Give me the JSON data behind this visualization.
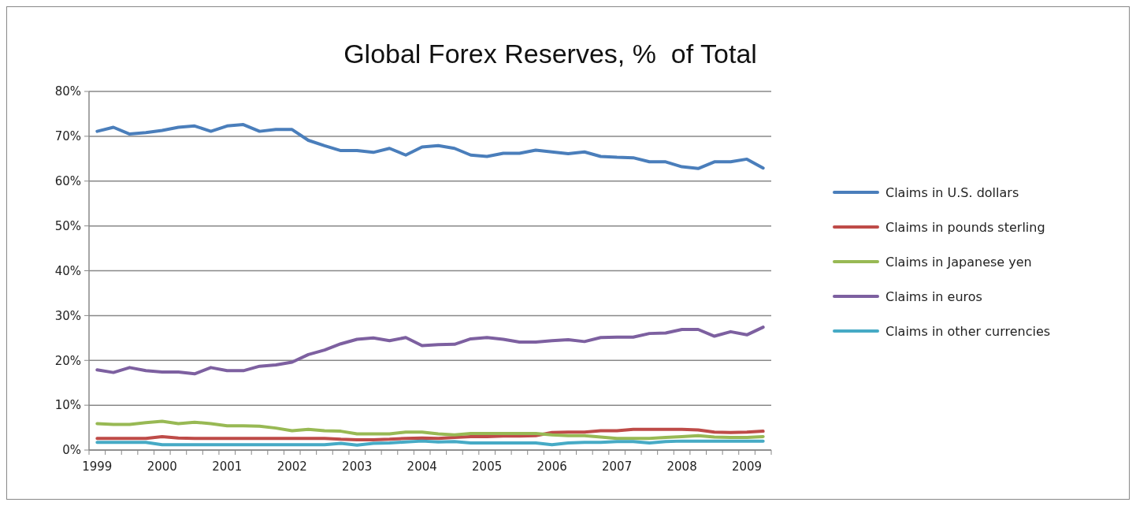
{
  "chart_data": {
    "type": "line",
    "title": "Global Forex Reserves, %  of Total",
    "categories": [
      "1999",
      null,
      null,
      null,
      "2000",
      null,
      null,
      null,
      "2001",
      null,
      null,
      null,
      "2002",
      null,
      null,
      null,
      "2003",
      null,
      null,
      null,
      "2004",
      null,
      null,
      null,
      "2005",
      null,
      null,
      null,
      "2006",
      null,
      null,
      null,
      "2007",
      null,
      null,
      null,
      "2008",
      null,
      null,
      null,
      "2009",
      null
    ],
    "ylim": [
      0,
      80
    ],
    "yticks": [
      {
        "value": 0,
        "label": "0%"
      },
      {
        "value": 10,
        "label": "10%"
      },
      {
        "value": 20,
        "label": "20%"
      },
      {
        "value": 30,
        "label": "30%"
      },
      {
        "value": 40,
        "label": "40%"
      },
      {
        "value": 50,
        "label": "50%"
      },
      {
        "value": 60,
        "label": "60%"
      },
      {
        "value": 70,
        "label": "70%"
      },
      {
        "value": 80,
        "label": "80%"
      }
    ],
    "grid": "y",
    "legend": "right",
    "marker": "none",
    "line_style": "solid",
    "series": [
      {
        "name": "Claims in U.S. dollars",
        "color": "#4a7ebb",
        "values": [
          71.1,
          72.0,
          70.5,
          70.8,
          71.3,
          72.0,
          72.3,
          71.1,
          72.3,
          72.6,
          71.1,
          71.5,
          71.5,
          69.1,
          67.9,
          66.8,
          66.8,
          66.4,
          67.3,
          65.8,
          67.6,
          67.9,
          67.3,
          65.8,
          65.5,
          66.2,
          66.2,
          66.9,
          66.5,
          66.1,
          66.5,
          65.5,
          65.3,
          65.2,
          64.3,
          64.3,
          63.2,
          62.8,
          64.3,
          64.3,
          64.9,
          62.9
        ]
      },
      {
        "name": "Claims in pounds sterling",
        "color": "#be4b48",
        "values": [
          2.6,
          2.6,
          2.6,
          2.6,
          3.0,
          2.7,
          2.6,
          2.6,
          2.6,
          2.6,
          2.6,
          2.6,
          2.6,
          2.6,
          2.6,
          2.4,
          2.3,
          2.3,
          2.4,
          2.6,
          2.7,
          2.6,
          2.8,
          3.0,
          3.0,
          3.1,
          3.1,
          3.2,
          3.9,
          4.0,
          4.0,
          4.3,
          4.3,
          4.6,
          4.6,
          4.6,
          4.6,
          4.5,
          4.0,
          3.9,
          4.0,
          4.2
        ]
      },
      {
        "name": "Claims in Japanese yen",
        "color": "#98b954",
        "values": [
          5.9,
          5.7,
          5.7,
          6.1,
          6.4,
          5.9,
          6.2,
          5.9,
          5.4,
          5.4,
          5.3,
          4.9,
          4.3,
          4.6,
          4.3,
          4.2,
          3.6,
          3.6,
          3.6,
          4.0,
          4.0,
          3.6,
          3.4,
          3.7,
          3.7,
          3.7,
          3.7,
          3.7,
          3.4,
          3.2,
          3.2,
          2.9,
          2.6,
          2.6,
          2.6,
          2.8,
          3.0,
          3.2,
          2.9,
          2.8,
          2.8,
          3.0
        ]
      },
      {
        "name": "Claims in euros",
        "color": "#7d60a0",
        "values": [
          17.9,
          17.3,
          18.4,
          17.7,
          17.4,
          17.4,
          17.0,
          18.4,
          17.7,
          17.7,
          18.7,
          19.0,
          19.6,
          21.3,
          22.3,
          23.7,
          24.7,
          25.0,
          24.4,
          25.1,
          23.3,
          23.5,
          23.6,
          24.8,
          25.1,
          24.7,
          24.1,
          24.1,
          24.4,
          24.6,
          24.2,
          25.1,
          25.2,
          25.2,
          26.0,
          26.1,
          26.9,
          26.9,
          25.4,
          26.4,
          25.7,
          27.4
        ]
      },
      {
        "name": "Claims in other currencies",
        "color": "#46aac5",
        "values": [
          1.7,
          1.7,
          1.7,
          1.7,
          1.2,
          1.2,
          1.2,
          1.2,
          1.2,
          1.2,
          1.2,
          1.2,
          1.2,
          1.2,
          1.2,
          1.5,
          1.1,
          1.5,
          1.6,
          1.8,
          2.0,
          1.8,
          1.9,
          1.6,
          1.6,
          1.6,
          1.6,
          1.6,
          1.2,
          1.6,
          1.7,
          1.7,
          1.9,
          1.9,
          1.6,
          1.9,
          2.0,
          2.0,
          2.0,
          2.0,
          2.0,
          2.0
        ]
      }
    ]
  }
}
